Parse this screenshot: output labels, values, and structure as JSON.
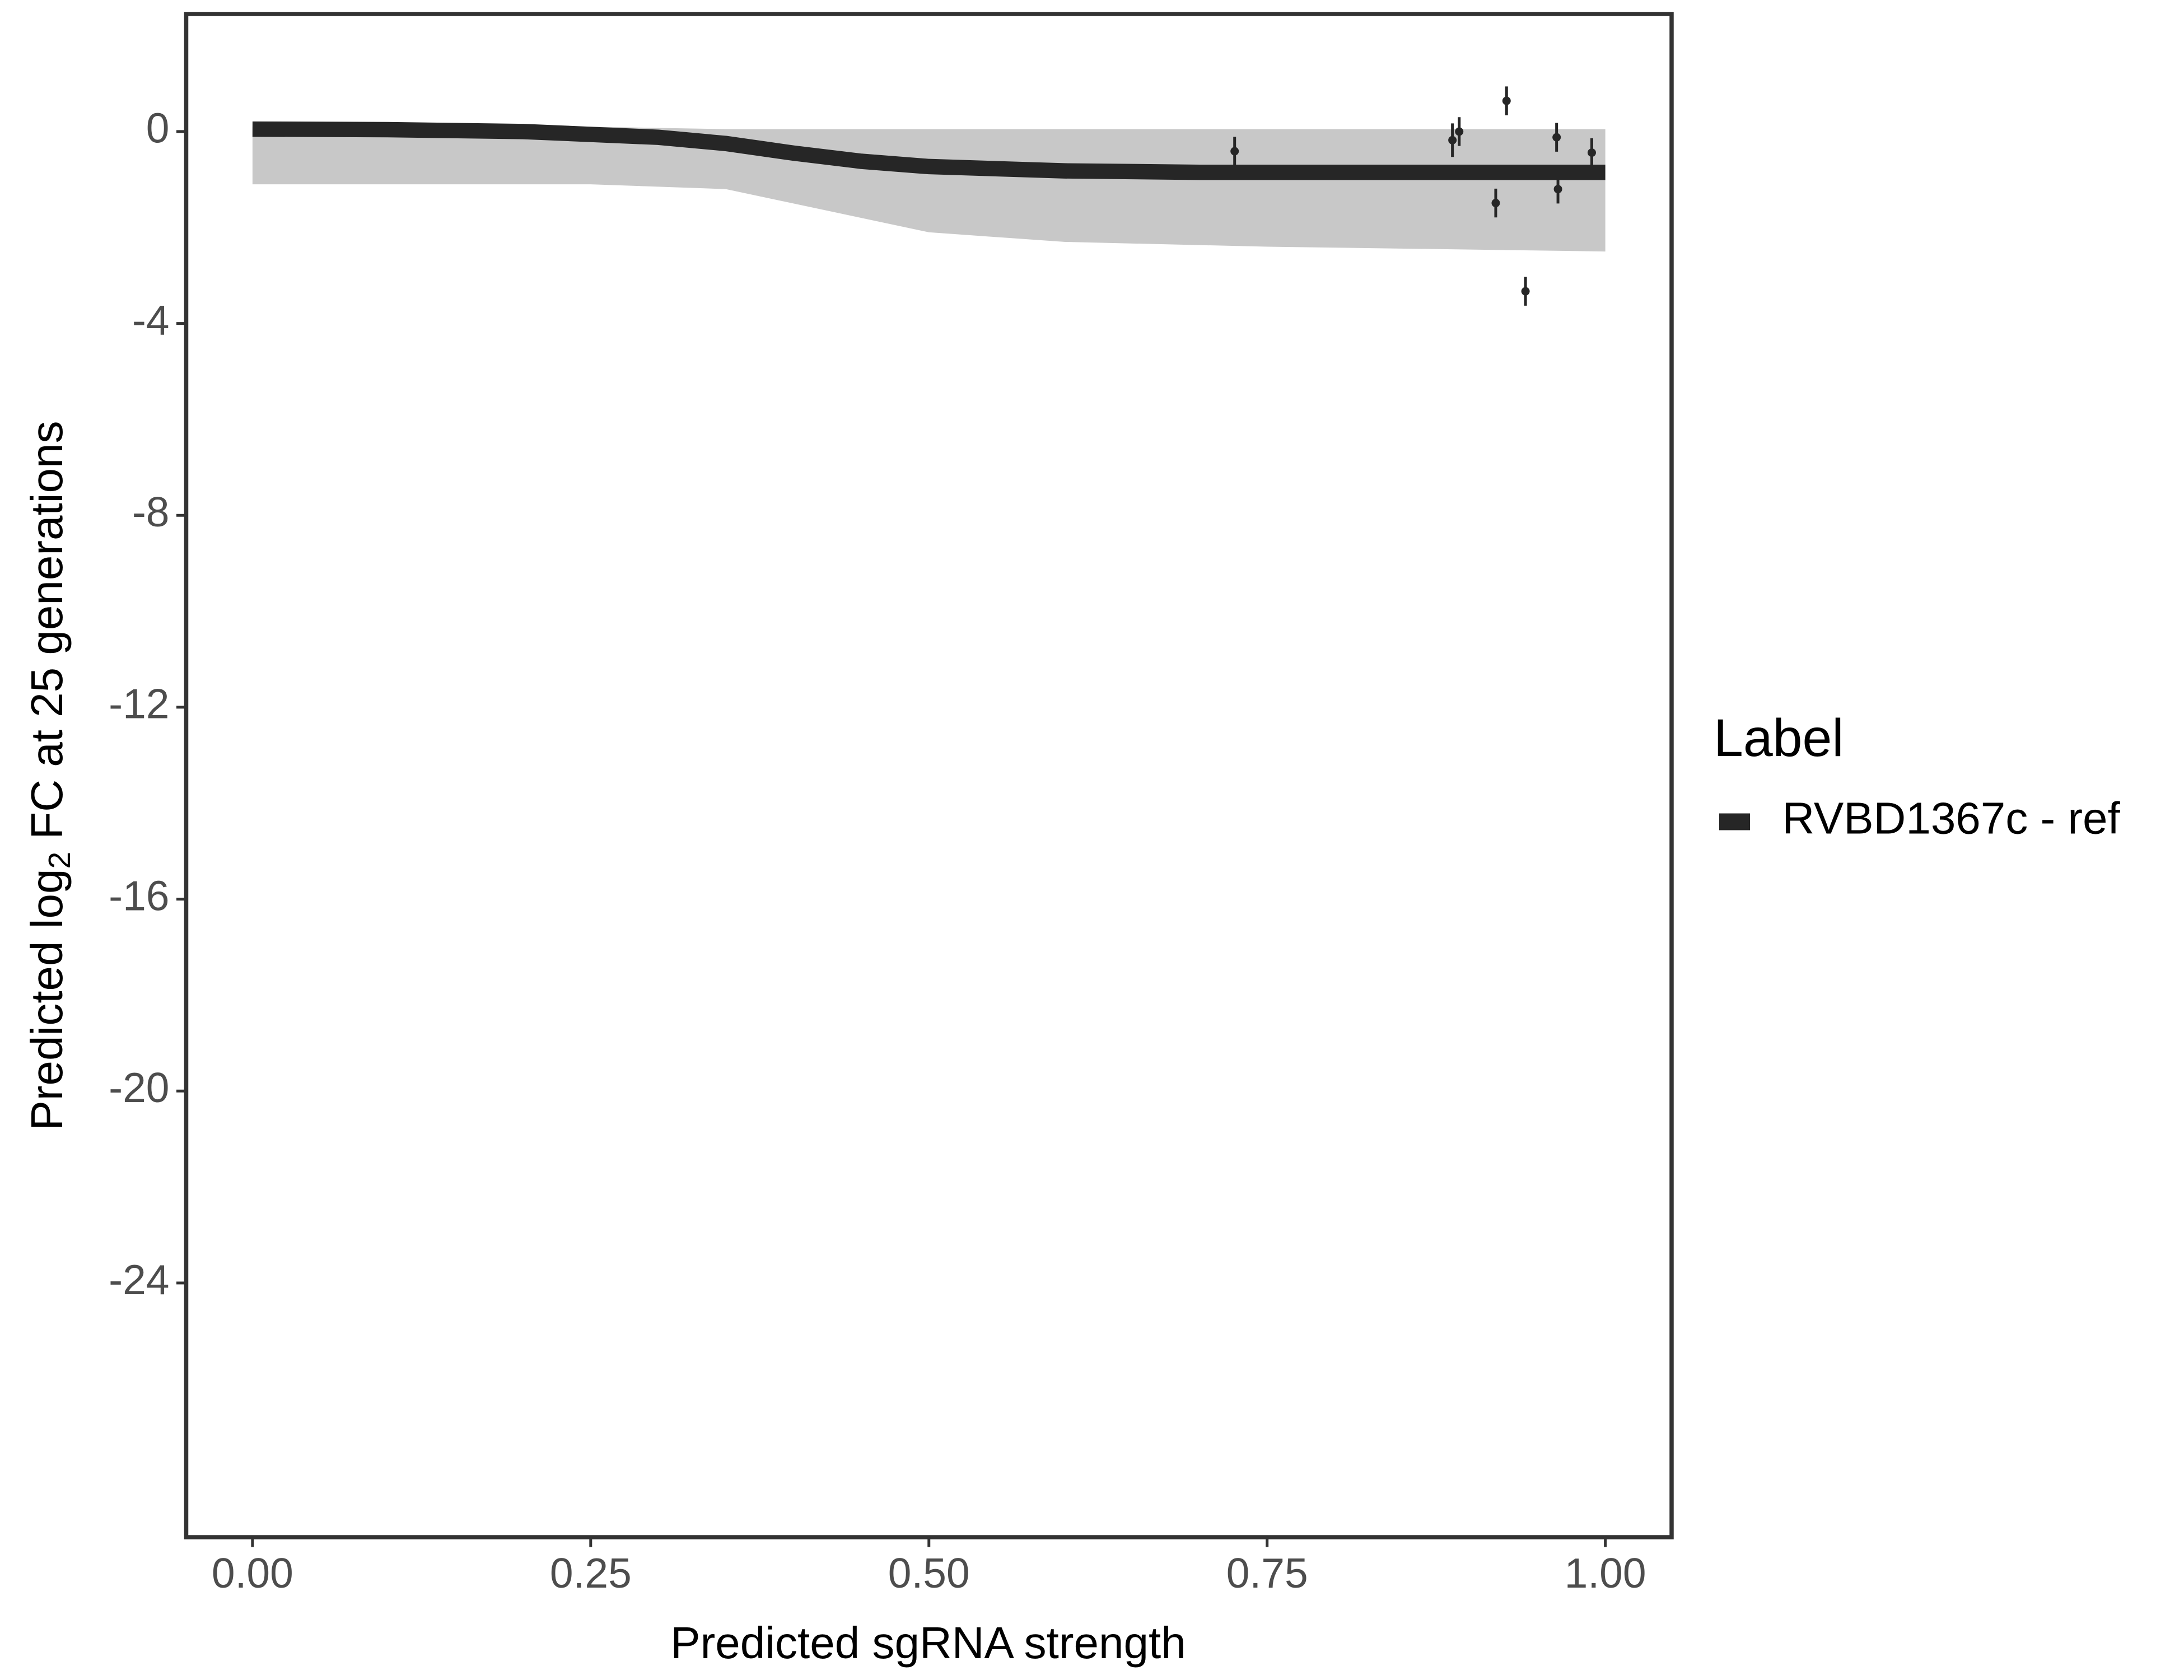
{
  "chart_data": {
    "type": "line",
    "xlabel": "Predicted sgRNA strength",
    "ylabel": {
      "before": "Predicted  log",
      "subscript": "2",
      "after": " FC at 25 generations"
    },
    "legend_title": "Label",
    "legend_position": "right",
    "xlim": [
      -0.049,
      1.049
    ],
    "ylim": [
      -29.3,
      2.45
    ],
    "xticks": [
      {
        "value": 0,
        "label": "0.00"
      },
      {
        "value": 0.25,
        "label": "0.25"
      },
      {
        "value": 0.5,
        "label": "0.50"
      },
      {
        "value": 0.75,
        "label": "0.75"
      },
      {
        "value": 1,
        "label": "1.00"
      }
    ],
    "yticks": [
      0,
      -4,
      -8,
      -12,
      -16,
      -20,
      -24
    ],
    "band": {
      "color": "#b5b5b5",
      "x": [
        0,
        0.25,
        0.35,
        0.45,
        0.5,
        0.6,
        0.75,
        1
      ],
      "upper": [
        0.1,
        0.1,
        0.05,
        0.05,
        0.05,
        0.05,
        0.05,
        0.05
      ],
      "lower": [
        -1.1,
        -1.1,
        -1.2,
        -1.8,
        -2.1,
        -2.3,
        -2.4,
        -2.5
      ]
    },
    "series": [
      {
        "name": "RVBD1367c - ref",
        "color": "#262626",
        "x": [
          0,
          0.1,
          0.2,
          0.3,
          0.35,
          0.4,
          0.45,
          0.5,
          0.6,
          0.7,
          0.8,
          0.9,
          1.0
        ],
        "values": [
          0.05,
          0.04,
          0.0,
          -0.12,
          -0.25,
          -0.45,
          -0.62,
          -0.73,
          -0.82,
          -0.85,
          -0.85,
          -0.85,
          -0.85
        ]
      }
    ],
    "points": {
      "color": "#262626",
      "x": [
        0.726,
        0.887,
        0.892,
        0.919,
        0.927,
        0.941,
        0.964,
        0.965,
        0.99
      ],
      "values": [
        -0.41,
        -0.18,
        0.0,
        -1.49,
        0.64,
        -3.33,
        -0.12,
        -1.2,
        -0.44
      ],
      "errors": [
        0.3,
        0.35,
        0.3,
        0.3,
        0.3,
        0.3,
        0.3,
        0.3,
        0.3
      ]
    }
  }
}
